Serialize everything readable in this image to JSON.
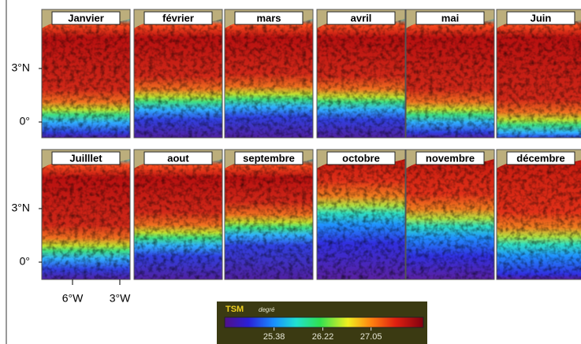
{
  "rows": [
    {
      "months": [
        "Janvier",
        "février",
        "mars",
        "avril",
        "mai",
        "Juin"
      ],
      "lat_labels": [
        "3°N",
        "0°"
      ]
    },
    {
      "months": [
        "Juilllet",
        "aout",
        "septembre",
        "octobre",
        "novembre",
        "décembre"
      ],
      "lat_labels": [
        "3°N",
        "0°"
      ]
    }
  ],
  "lon_labels": [
    "6°W",
    "3°W"
  ],
  "colorbar": {
    "title": "TSM",
    "unit": "degré",
    "lim": [
      24.53,
      27.95
    ],
    "ticks": [
      25.38,
      26.22,
      27.05
    ]
  }
}
